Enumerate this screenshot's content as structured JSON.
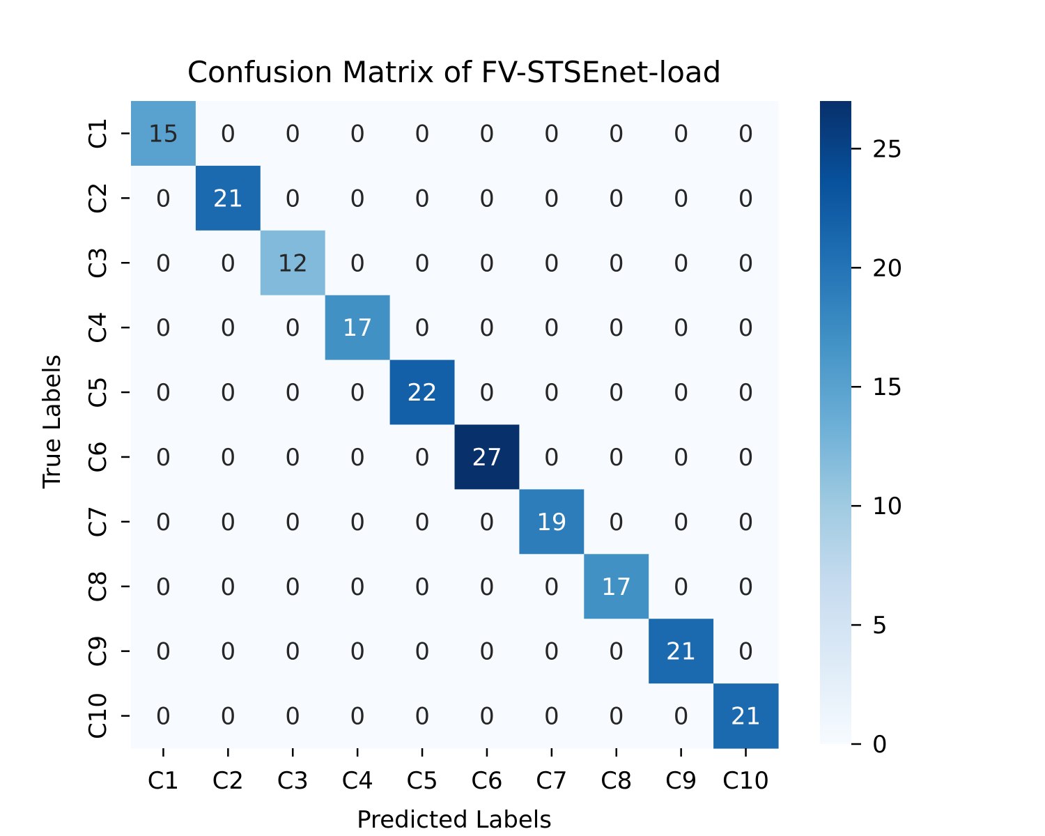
{
  "chart_data": {
    "type": "heatmap",
    "title": "Confusion Matrix of FV-STSEnet-load",
    "xlabel": "Predicted Labels",
    "ylabel": "True Labels",
    "x_categories": [
      "C1",
      "C2",
      "C3",
      "C4",
      "C5",
      "C6",
      "C7",
      "C8",
      "C9",
      "C10"
    ],
    "y_categories": [
      "C1",
      "C2",
      "C3",
      "C4",
      "C5",
      "C6",
      "C7",
      "C8",
      "C9",
      "C10"
    ],
    "values": [
      [
        15,
        0,
        0,
        0,
        0,
        0,
        0,
        0,
        0,
        0
      ],
      [
        0,
        21,
        0,
        0,
        0,
        0,
        0,
        0,
        0,
        0
      ],
      [
        0,
        0,
        12,
        0,
        0,
        0,
        0,
        0,
        0,
        0
      ],
      [
        0,
        0,
        0,
        17,
        0,
        0,
        0,
        0,
        0,
        0
      ],
      [
        0,
        0,
        0,
        0,
        22,
        0,
        0,
        0,
        0,
        0
      ],
      [
        0,
        0,
        0,
        0,
        0,
        27,
        0,
        0,
        0,
        0
      ],
      [
        0,
        0,
        0,
        0,
        0,
        0,
        19,
        0,
        0,
        0
      ],
      [
        0,
        0,
        0,
        0,
        0,
        0,
        0,
        17,
        0,
        0
      ],
      [
        0,
        0,
        0,
        0,
        0,
        0,
        0,
        0,
        21,
        0
      ],
      [
        0,
        0,
        0,
        0,
        0,
        0,
        0,
        0,
        0,
        21
      ]
    ],
    "colorbar": {
      "min": 0,
      "max": 27,
      "ticks": [
        0,
        5,
        10,
        15,
        20,
        25
      ]
    },
    "colormap": "Blues",
    "colors": {
      "low": "#f7fbff",
      "high": "#08306b",
      "dark_text": "#262626",
      "light_text": "#ffffff"
    }
  }
}
